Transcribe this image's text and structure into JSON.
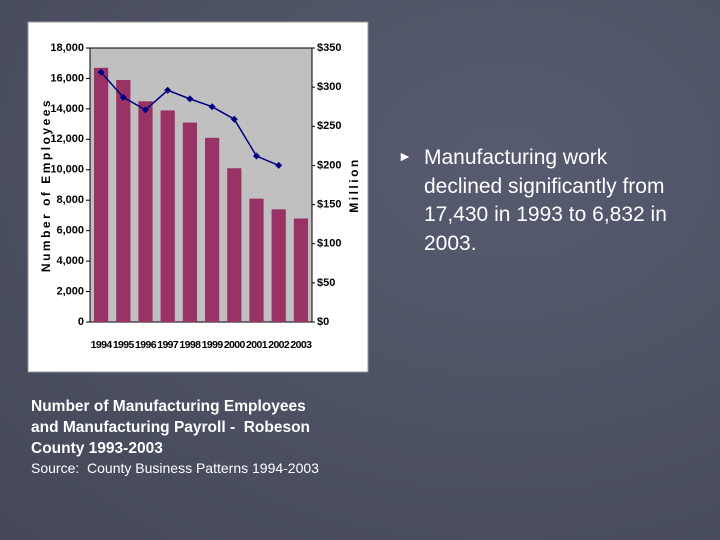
{
  "chart_data": {
    "type": "bar",
    "categories": [
      "1994",
      "1995",
      "1996",
      "1997",
      "1998",
      "1999",
      "2000",
      "2001",
      "2002",
      "2003"
    ],
    "series": [
      {
        "color": "#993366",
        "values": [
          16700,
          15900,
          14500,
          13900,
          13100,
          12100,
          10100,
          8100,
          7400,
          6800
        ]
      },
      {
        "color": "#000080",
        "type": "line",
        "axis": "y2",
        "values": [
          319,
          287,
          271,
          296,
          285,
          275,
          259,
          212,
          200,
          null
        ]
      }
    ],
    "ylabel": "Number of Employees",
    "y2label": "Million",
    "ylim": [
      0,
      18000
    ],
    "yticks": [
      0,
      {
        "value": 2000,
        "label": "2,000"
      },
      {
        "value": 4000,
        "label": "4,000"
      },
      {
        "value": 6000,
        "label": "6,000"
      },
      {
        "value": 8000,
        "label": "8,000"
      },
      {
        "value": 10000,
        "label": "10,000"
      },
      {
        "value": 12000,
        "label": "12,000"
      },
      {
        "value": 14000,
        "label": "14,000"
      },
      {
        "value": 16000,
        "label": "16,000"
      },
      {
        "value": 18000,
        "label": "18,000"
      }
    ],
    "y2lim": [
      0,
      350
    ],
    "y2ticks": [
      {
        "value": 0,
        "label": "$0"
      },
      {
        "value": 50,
        "label": "$50"
      },
      {
        "value": 100,
        "label": "$100"
      },
      {
        "value": 150,
        "label": "$150"
      },
      {
        "value": 200,
        "label": "$200"
      },
      {
        "value": 250,
        "label": "$250"
      },
      {
        "value": 300,
        "label": "$300"
      },
      {
        "value": 350,
        "label": "$350"
      }
    ]
  },
  "slide": {
    "caption": [
      "Number of Manufacturing Employees",
      "and Manufacturing Payroll -  Robeson",
      "County 1993-2003"
    ],
    "source": "Source:  County Business Patterns 1994-2003",
    "bullet": [
      "Manufacturing work",
      "declined significantly from",
      "17,430 in 1993 to 6,832 in",
      "2003."
    ]
  }
}
